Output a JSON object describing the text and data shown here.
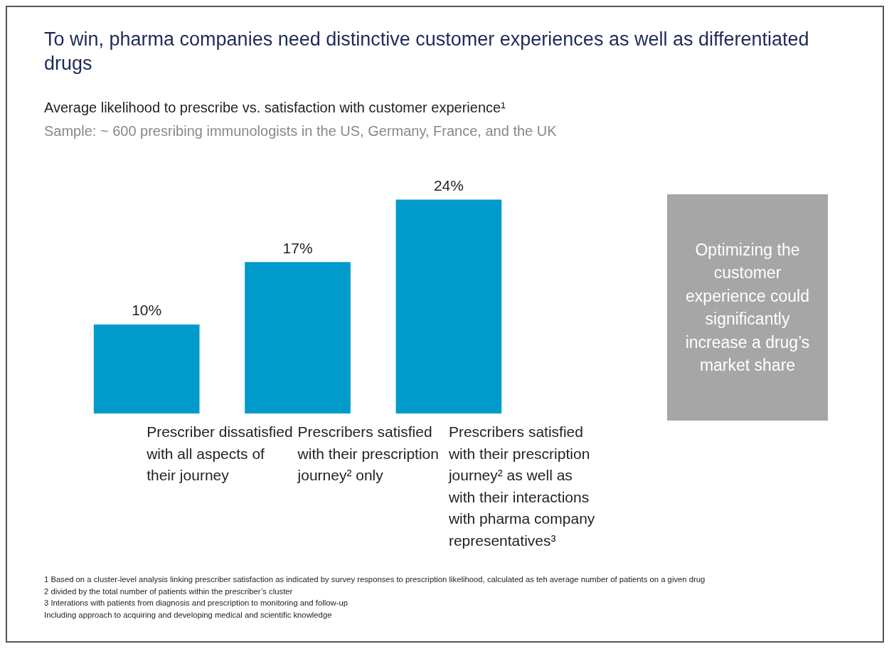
{
  "chart_data": {
    "type": "bar",
    "title": "To win, pharma companies need distinctive customer experiences as well as differentiated drugs",
    "subtitle": "Average likelihood to prescribe vs. satisfaction with customer experience¹",
    "annotations": [
      "Sample: ~ 600 presribing immunologists in the US, Germany, France, and the UK",
      "Optimizing the customer experience could significantly increase a drug’s market share",
      "1 Based on a cluster-level analysis linking prescriber satisfaction as indicated by survey responses to prescription likelihood, calculated as teh average number of patients on a given drug",
      "2 divided by the total number of patients within the prescriber’s cluster",
      "3 Interations with patients from diagnosis and prescription to monitoring and follow-up",
      "Including approach to acquiring and developing medical and scientific knowledge"
    ],
    "categories": [
      "Prescriber dissatisfied with all aspects of their journey",
      "Prescribers satisfied with their prescription journey² only",
      "Prescribers satisfied with their prescription journey² as well as with their interactions with pharma company representatives³"
    ],
    "values": [
      10,
      17,
      24
    ],
    "color": "#009bcb",
    "value_labels": [
      "10%",
      "17%",
      "24%"
    ],
    "grid": false,
    "legend": false
  }
}
